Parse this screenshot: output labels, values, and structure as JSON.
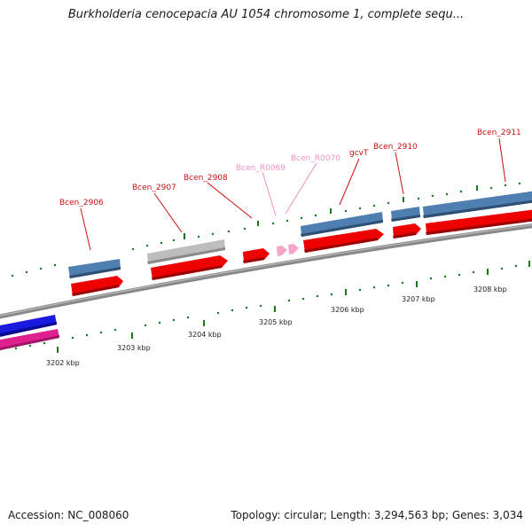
{
  "title": "Burkholderia cenocepacia AU 1054 chromosome 1, complete sequ...",
  "footer": {
    "accession": "Accession: NC_008060",
    "stats": "Topology: circular; Length: 3,294,563 bp; Genes: 3,034"
  },
  "colors": {
    "blue_gene": "#4f7fb0",
    "red_gene": "#ee0000",
    "grey_gene": "#bdbdbd",
    "pink_gene": "#f6a6c8",
    "dark_blue_gene": "#1a1adf",
    "magenta_gene": "#e0208f",
    "tick_green": "#1a7a1a",
    "label_red": "#cc1111",
    "label_pink": "#f08fbf"
  },
  "ticks": [
    {
      "label": "3202 kbp"
    },
    {
      "label": "3203 kbp"
    },
    {
      "label": "3204 kbp"
    },
    {
      "label": "3205 kbp"
    },
    {
      "label": "3206 kbp"
    },
    {
      "label": "3207 kbp"
    },
    {
      "label": "3208 kbp"
    }
  ],
  "gene_labels": [
    {
      "text": "Bcen_2906",
      "color": "red"
    },
    {
      "text": "Bcen_2907",
      "color": "red"
    },
    {
      "text": "Bcen_2908",
      "color": "red"
    },
    {
      "text": "Bcen_R0069",
      "color": "pink"
    },
    {
      "text": "Bcen_R0070",
      "color": "pink"
    },
    {
      "text": "gcvT",
      "color": "red"
    },
    {
      "text": "Bcen_2910",
      "color": "red"
    },
    {
      "text": "Bcen_2911",
      "color": "red"
    }
  ]
}
